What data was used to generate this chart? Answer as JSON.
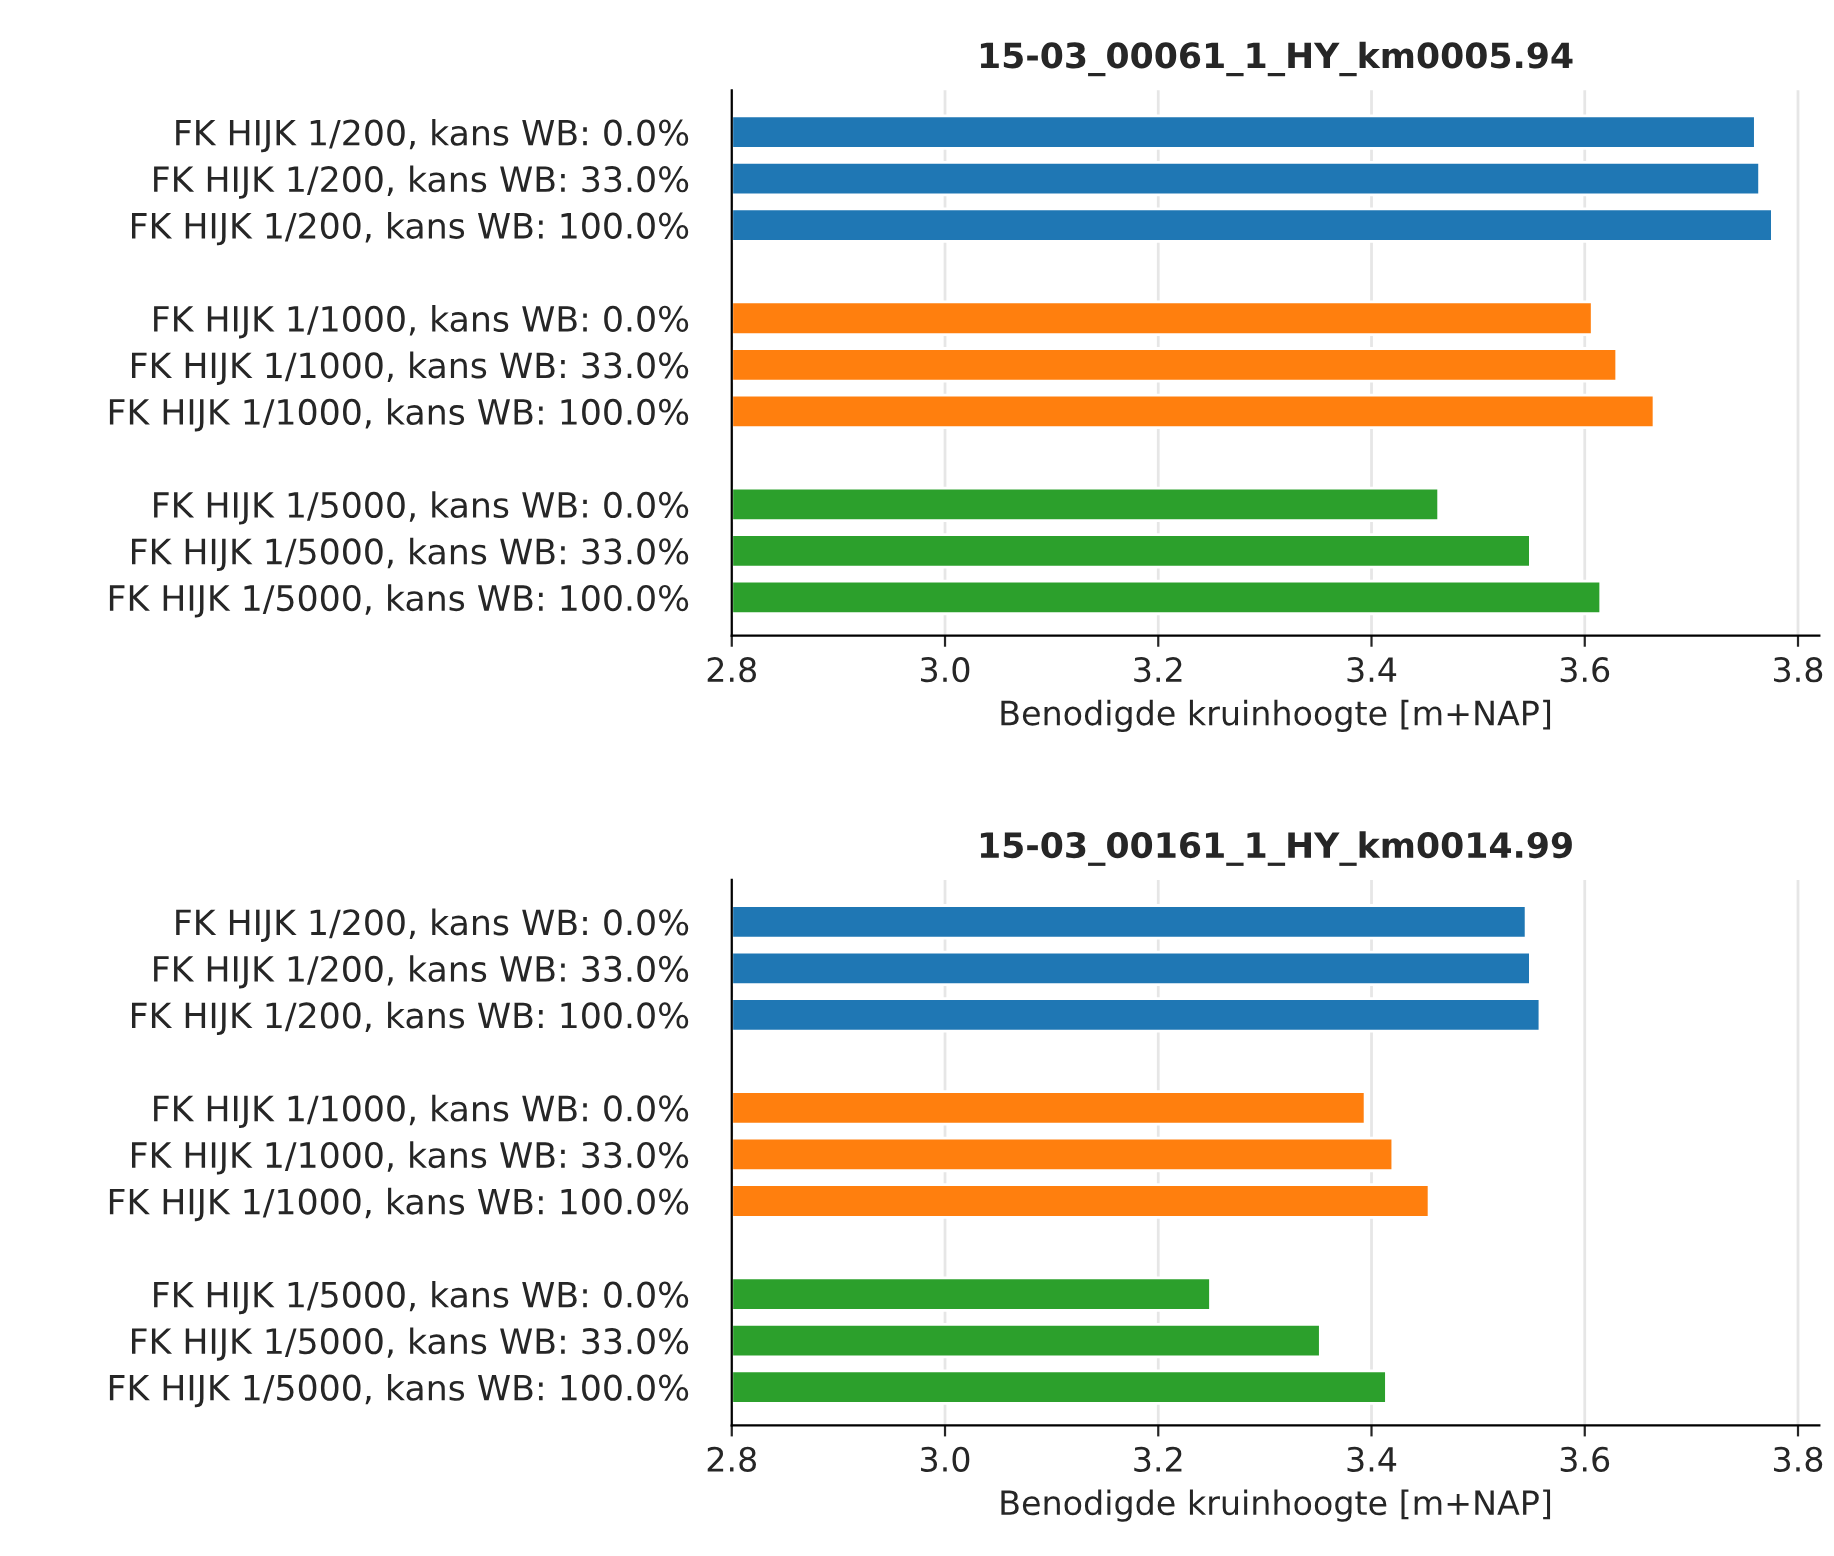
{
  "chart_data": [
    {
      "type": "bar",
      "orientation": "horizontal",
      "title": "15-03_00061_1_HY_km0005.94",
      "xlabel": "Benodigde kruinhoogte [m+NAP]",
      "categories": [
        "FK HIJK 1/200, kans WB: 0.0%",
        "FK HIJK 1/200, kans WB: 33.0%",
        "FK HIJK 1/200, kans WB: 100.0%",
        null,
        "FK HIJK 1/1000, kans WB: 0.0%",
        "FK HIJK 1/1000, kans WB: 33.0%",
        "FK HIJK 1/1000, kans WB: 100.0%",
        null,
        "FK HIJK 1/5000, kans WB: 0.0%",
        "FK HIJK 1/5000, kans WB: 33.0%",
        "FK HIJK 1/5000, kans WB: 100.0%"
      ],
      "values": [
        3.76,
        3.764,
        3.776,
        null,
        3.607,
        3.63,
        3.665,
        null,
        3.463,
        3.549,
        3.615
      ],
      "colors": [
        "#1f77b4",
        "#1f77b4",
        "#1f77b4",
        null,
        "#ff7f0e",
        "#ff7f0e",
        "#ff7f0e",
        null,
        "#2ca02c",
        "#2ca02c",
        "#2ca02c"
      ],
      "xlim": [
        2.8,
        3.82
      ],
      "xticks": [
        {
          "value": 2.8,
          "label": "2.8"
        },
        {
          "value": 3.0,
          "label": "3.0"
        },
        {
          "value": 3.2,
          "label": "3.2"
        },
        {
          "value": 3.4,
          "label": "3.4"
        },
        {
          "value": 3.6,
          "label": "3.6"
        },
        {
          "value": 3.8,
          "label": "3.8"
        }
      ],
      "grid": "x",
      "legend": false
    },
    {
      "type": "bar",
      "orientation": "horizontal",
      "title": "15-03_00161_1_HY_km0014.99",
      "xlabel": "Benodigde kruinhoogte [m+NAP]",
      "categories": [
        "FK HIJK 1/200, kans WB: 0.0%",
        "FK HIJK 1/200, kans WB: 33.0%",
        "FK HIJK 1/200, kans WB: 100.0%",
        null,
        "FK HIJK 1/1000, kans WB: 0.0%",
        "FK HIJK 1/1000, kans WB: 33.0%",
        "FK HIJK 1/1000, kans WB: 100.0%",
        null,
        "FK HIJK 1/5000, kans WB: 0.0%",
        "FK HIJK 1/5000, kans WB: 33.0%",
        "FK HIJK 1/5000, kans WB: 100.0%"
      ],
      "values": [
        3.545,
        3.549,
        3.558,
        null,
        3.394,
        3.42,
        3.454,
        null,
        3.249,
        3.352,
        3.414
      ],
      "colors": [
        "#1f77b4",
        "#1f77b4",
        "#1f77b4",
        null,
        "#ff7f0e",
        "#ff7f0e",
        "#ff7f0e",
        null,
        "#2ca02c",
        "#2ca02c",
        "#2ca02c"
      ],
      "xlim": [
        2.8,
        3.82
      ],
      "xticks": [
        {
          "value": 2.8,
          "label": "2.8"
        },
        {
          "value": 3.0,
          "label": "3.0"
        },
        {
          "value": 3.2,
          "label": "3.2"
        },
        {
          "value": 3.4,
          "label": "3.4"
        },
        {
          "value": 3.6,
          "label": "3.6"
        },
        {
          "value": 3.8,
          "label": "3.8"
        }
      ],
      "grid": "x",
      "legend": false
    }
  ]
}
